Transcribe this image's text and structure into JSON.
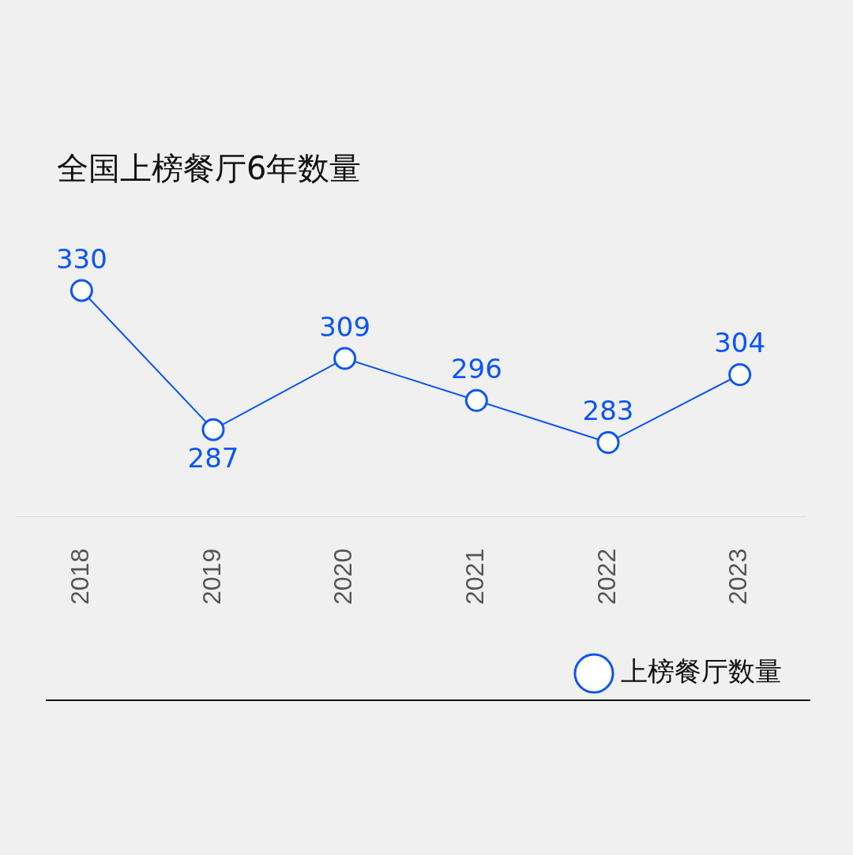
{
  "chart_data": {
    "type": "line",
    "title": "全国上榜餐厅6年数量",
    "categories": [
      "2018",
      "2019",
      "2020",
      "2021",
      "2022",
      "2023"
    ],
    "series": [
      {
        "name": "上榜餐厅数量",
        "color": "#0a55ff",
        "values": [
          330,
          287,
          309,
          296,
          283,
          304
        ]
      }
    ],
    "data_labels": true,
    "marker": "circle",
    "line_style": "solid",
    "grid": false,
    "legend": "bottom right",
    "tick_labels": "x"
  }
}
